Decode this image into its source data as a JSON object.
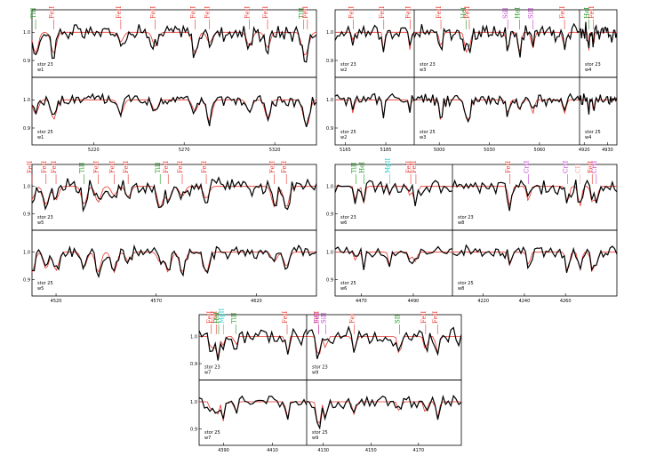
{
  "colors": {
    "observed": "#000000",
    "model": "#e8332a",
    "Fe": "#e8332a",
    "Ti": "#1e9a1e",
    "He": "#1e9a1e",
    "Si": "#c040d0",
    "S": "#c040d0",
    "Mg": "#20c8c8",
    "Cr": "#c040d0",
    "C": "#f0a0a0"
  },
  "chart_data": [
    {
      "id": "A",
      "type": "line",
      "ylim": [
        0.84,
        1.08
      ],
      "regions": [
        {
          "label": "w1",
          "xlim": [
            5186,
            5343
          ],
          "ticks": [
            5220,
            5270,
            5320
          ],
          "lines": [
            {
              "ion": "TiII",
              "x": 5188,
              "color": "Ti"
            },
            {
              "ion": "FeII",
              "x": 5198,
              "color": "Fe"
            },
            {
              "ion": "FeII",
              "x": 5235,
              "color": "Fe"
            },
            {
              "ion": "FeII",
              "x": 5254,
              "color": "Fe"
            },
            {
              "ion": "FeII",
              "x": 5276,
              "color": "Fe"
            },
            {
              "ion": "FeII",
              "x": 5284,
              "color": "Fe"
            },
            {
              "ion": "FeII",
              "x": 5306,
              "color": "Fe"
            },
            {
              "ion": "FeII",
              "x": 5316,
              "color": "Fe"
            },
            {
              "ion": "TiII",
              "x": 5336,
              "color": "Ti"
            },
            {
              "ion": "FeII",
              "x": 5338,
              "color": "Fe"
            }
          ]
        }
      ],
      "panels": [
        {
          "star": "stor 23"
        },
        {
          "star": "stor 25"
        }
      ]
    },
    {
      "id": "B",
      "type": "line",
      "ylim": [
        0.84,
        1.08
      ],
      "regions": [
        {
          "label": "w2",
          "xlim": [
            5160,
            5199
          ],
          "ticks": [
            5165,
            5185
          ],
          "lines": [
            {
              "ion": "FeII",
              "x": 5169,
              "color": "Fe"
            },
            {
              "ion": "FeII",
              "x": 5184,
              "color": "Fe"
            },
            {
              "ion": "FeII",
              "x": 5197,
              "color": "Fe"
            }
          ]
        },
        {
          "label": "w3",
          "xlim": [
            4985,
            5084
          ],
          "ticks": [
            5000,
            5030,
            5060
          ],
          "lines": [
            {
              "ion": "FeII",
              "x": 5001,
              "color": "Fe"
            },
            {
              "ion": "HeI",
              "x": 5016,
              "color": "He"
            },
            {
              "ion": "FeII",
              "x": 5018,
              "color": "Fe"
            },
            {
              "ion": "SiII",
              "x": 5041,
              "color": "Si"
            },
            {
              "ion": "HeI",
              "x": 5048,
              "color": "He"
            },
            {
              "ion": "SiII",
              "x": 5056,
              "color": "Si"
            },
            {
              "ion": "FeII",
              "x": 5075,
              "color": "Fe"
            }
          ]
        },
        {
          "label": "w4",
          "xlim": [
            4918,
            4934
          ],
          "ticks": [
            4920,
            4930
          ],
          "lines": [
            {
              "ion": "HeI",
              "x": 4922,
              "color": "He"
            },
            {
              "ion": "FeII",
              "x": 4924,
              "color": "Fe"
            }
          ]
        }
      ],
      "panels": [
        {
          "star": "stor 23"
        },
        {
          "star": "stor 25"
        }
      ]
    },
    {
      "id": "C",
      "type": "line",
      "ylim": [
        0.84,
        1.08
      ],
      "regions": [
        {
          "label": "w5",
          "xlim": [
            4508,
            4650
          ],
          "ticks": [
            4520,
            4570,
            4620
          ],
          "lines": [
            {
              "ion": "FeII",
              "x": 4508,
              "color": "Fe"
            },
            {
              "ion": "FeII",
              "x": 4515,
              "color": "Fe"
            },
            {
              "ion": "FeII",
              "x": 4520,
              "color": "Fe"
            },
            {
              "ion": "TiII",
              "x": 4534,
              "color": "Ti"
            },
            {
              "ion": "FeII",
              "x": 4541,
              "color": "Fe"
            },
            {
              "ion": "FeII",
              "x": 4549,
              "color": "Fe"
            },
            {
              "ion": "FeII",
              "x": 4556,
              "color": "Fe"
            },
            {
              "ion": "TiII",
              "x": 4572,
              "color": "Ti"
            },
            {
              "ion": "FeII",
              "x": 4576,
              "color": "Fe"
            },
            {
              "ion": "FeII",
              "x": 4583,
              "color": "Fe"
            },
            {
              "ion": "FeII",
              "x": 4595,
              "color": "Fe"
            },
            {
              "ion": "FeII",
              "x": 4629,
              "color": "Fe"
            },
            {
              "ion": "FeII",
              "x": 4635,
              "color": "Fe"
            }
          ]
        }
      ],
      "panels": [
        {
          "star": "stor 23"
        },
        {
          "star": "stor 25"
        }
      ]
    },
    {
      "id": "D",
      "type": "line",
      "ylim": [
        0.84,
        1.08
      ],
      "regions": [
        {
          "label": "w6",
          "xlim": [
            4460,
            4505
          ],
          "ticks": [
            4470,
            4490
          ],
          "lines": [
            {
              "ion": "TiII",
              "x": 4468,
              "color": "Ti"
            },
            {
              "ion": "HeI",
              "x": 4471,
              "color": "He"
            },
            {
              "ion": "MgII",
              "x": 4481,
              "color": "Mg"
            },
            {
              "ion": "FeII",
              "x": 4489,
              "color": "Fe"
            },
            {
              "ion": "FeII",
              "x": 4491,
              "color": "Fe"
            }
          ]
        },
        {
          "label": "w8",
          "xlim": [
            4205,
            4285
          ],
          "ticks": [
            4220,
            4240,
            4260
          ],
          "lines": [
            {
              "ion": "FeII",
              "x": 4233,
              "color": "Fe"
            },
            {
              "ion": "CrII",
              "x": 4242,
              "color": "Cr"
            },
            {
              "ion": "CrII",
              "x": 4261,
              "color": "Cr"
            },
            {
              "ion": "CII",
              "x": 4267,
              "color": "C"
            },
            {
              "ion": "FeII",
              "x": 4273,
              "color": "Fe"
            },
            {
              "ion": "CrII",
              "x": 4275,
              "color": "Cr"
            }
          ]
        }
      ],
      "panels": [
        {
          "star": "stor 23"
        },
        {
          "star": "stor 25"
        }
      ]
    },
    {
      "id": "E",
      "type": "line",
      "ylim": [
        0.84,
        1.08
      ],
      "regions": [
        {
          "label": "w7",
          "xlim": [
            4380,
            4424
          ],
          "ticks": [
            4390,
            4410
          ],
          "lines": [
            {
              "ion": "FeII",
              "x": 4385,
              "color": "Fe"
            },
            {
              "ion": "FeII",
              "x": 4387,
              "color": "Fe"
            },
            {
              "ion": "HeI",
              "x": 4388,
              "color": "He"
            },
            {
              "ion": "MgII",
              "x": 4390,
              "color": "Mg"
            },
            {
              "ion": "TiII",
              "x": 4395,
              "color": "Ti"
            },
            {
              "ion": "FeII",
              "x": 4416,
              "color": "Fe"
            }
          ]
        },
        {
          "label": "w9",
          "xlim": [
            4123,
            4188
          ],
          "ticks": [
            4130,
            4150,
            4170
          ],
          "lines": [
            {
              "ion": "FeII",
              "x": 4128,
              "color": "Fe"
            },
            {
              "ion": "SiII",
              "x": 4128,
              "color": "Si"
            },
            {
              "ion": "SiII",
              "x": 4131,
              "color": "Si"
            },
            {
              "ion": "FeI",
              "x": 4143,
              "color": "Fe"
            },
            {
              "ion": "SII",
              "x": 4162,
              "color": "Ti"
            },
            {
              "ion": "FeII",
              "x": 4173,
              "color": "Fe"
            },
            {
              "ion": "FeII",
              "x": 4178,
              "color": "Fe"
            }
          ]
        }
      ],
      "panels": [
        {
          "star": "stor 23"
        },
        {
          "star": "stor 25"
        }
      ]
    }
  ],
  "y_tick_labels": [
    "1.0",
    "0.9"
  ]
}
